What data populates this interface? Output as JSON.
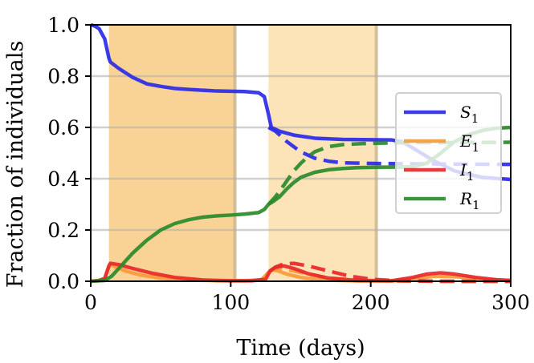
{
  "chart_data": {
    "type": "line",
    "xlabel": "Time (days)",
    "ylabel": "Fraction of individuals",
    "xlim": [
      0,
      300
    ],
    "ylim": [
      0,
      1
    ],
    "xticks": [
      "0",
      "100",
      "200",
      "300"
    ],
    "yticks": [
      "0.0",
      "0.2",
      "0.4",
      "0.6",
      "0.8",
      "1.0"
    ],
    "grid": "horizontal",
    "legend_position": "right",
    "legend": [
      {
        "label": "S",
        "sub": "1",
        "color": "#2a2ae8"
      },
      {
        "label": "E",
        "sub": "1",
        "color": "#f79a3a"
      },
      {
        "label": "I",
        "sub": "1",
        "color": "#e8282a"
      },
      {
        "label": "R",
        "sub": "1",
        "color": "#2a8a2a"
      }
    ],
    "shaded_regions": [
      {
        "x0": 13,
        "x1": 103,
        "color": "#f7c06a"
      },
      {
        "x0": 127,
        "x1": 204,
        "color": "#fbd89a"
      }
    ],
    "series": [
      {
        "name": "S1",
        "style": "solid",
        "color": "#2a2ae8",
        "x": [
          0,
          3,
          6,
          10,
          13,
          14,
          20,
          30,
          40,
          50,
          60,
          70,
          80,
          90,
          100,
          110,
          120,
          124,
          127,
          129,
          135,
          145,
          160,
          180,
          200,
          215,
          222,
          230,
          245,
          260,
          280,
          300
        ],
        "y": [
          1.0,
          0.995,
          0.985,
          0.945,
          0.87,
          0.855,
          0.83,
          0.795,
          0.77,
          0.76,
          0.752,
          0.748,
          0.745,
          0.742,
          0.741,
          0.74,
          0.735,
          0.72,
          0.65,
          0.6,
          0.585,
          0.57,
          0.558,
          0.553,
          0.552,
          0.551,
          0.545,
          0.52,
          0.47,
          0.43,
          0.405,
          0.397
        ]
      },
      {
        "name": "S1 (dashed)",
        "style": "dashed",
        "color": "#2a2ae8",
        "x": [
          127,
          132,
          140,
          150,
          160,
          170,
          180,
          195,
          210,
          230,
          260,
          300
        ],
        "y": [
          0.6,
          0.585,
          0.545,
          0.505,
          0.48,
          0.468,
          0.462,
          0.46,
          0.459,
          0.458,
          0.457,
          0.456
        ]
      },
      {
        "name": "E1",
        "style": "solid",
        "color": "#f79a3a",
        "x": [
          0,
          6,
          10,
          13,
          14,
          18,
          25,
          35,
          50,
          70,
          90,
          110,
          122,
          127,
          130,
          134,
          140,
          150,
          165,
          190,
          215,
          230,
          245,
          260,
          280,
          300
        ],
        "y": [
          0.0,
          0.003,
          0.012,
          0.06,
          0.065,
          0.055,
          0.04,
          0.025,
          0.012,
          0.005,
          0.002,
          0.002,
          0.006,
          0.035,
          0.045,
          0.04,
          0.028,
          0.015,
          0.005,
          0.001,
          0.001,
          0.008,
          0.02,
          0.018,
          0.008,
          0.003
        ]
      },
      {
        "name": "E1 (dashed)",
        "style": "dashed",
        "color": "#f79a3a",
        "x": [
          127,
          130,
          136,
          145,
          155,
          170,
          190,
          220,
          260,
          300
        ],
        "y": [
          0.035,
          0.045,
          0.05,
          0.04,
          0.028,
          0.013,
          0.004,
          0.001,
          0.0,
          0.0
        ]
      },
      {
        "name": "I1",
        "style": "solid",
        "color": "#e8282a",
        "x": [
          0,
          5,
          10,
          13,
          14,
          20,
          30,
          45,
          60,
          80,
          100,
          115,
          125,
          128,
          132,
          138,
          145,
          155,
          170,
          190,
          215,
          230,
          240,
          250,
          260,
          275,
          290,
          300
        ],
        "y": [
          0.0,
          0.002,
          0.01,
          0.06,
          0.07,
          0.065,
          0.05,
          0.03,
          0.015,
          0.005,
          0.002,
          0.002,
          0.008,
          0.04,
          0.055,
          0.06,
          0.05,
          0.03,
          0.012,
          0.003,
          0.002,
          0.015,
          0.028,
          0.033,
          0.028,
          0.015,
          0.006,
          0.003
        ]
      },
      {
        "name": "I1 (dashed)",
        "style": "dashed",
        "color": "#e8282a",
        "x": [
          128,
          132,
          138,
          145,
          155,
          170,
          185,
          200,
          220,
          250,
          300
        ],
        "y": [
          0.04,
          0.055,
          0.068,
          0.07,
          0.06,
          0.04,
          0.02,
          0.008,
          0.002,
          0.0,
          0.0
        ]
      },
      {
        "name": "R1",
        "style": "solid",
        "color": "#2a8a2a",
        "x": [
          0,
          10,
          15,
          20,
          25,
          30,
          40,
          50,
          60,
          70,
          80,
          90,
          100,
          110,
          120,
          124,
          127,
          130,
          135,
          140,
          145,
          150,
          160,
          170,
          180,
          190,
          200,
          210,
          220,
          230,
          240,
          250,
          260,
          270,
          280,
          290,
          300
        ],
        "y": [
          0.0,
          0.003,
          0.02,
          0.05,
          0.08,
          0.11,
          0.16,
          0.2,
          0.225,
          0.24,
          0.25,
          0.255,
          0.258,
          0.262,
          0.268,
          0.28,
          0.3,
          0.31,
          0.33,
          0.36,
          0.385,
          0.405,
          0.425,
          0.435,
          0.44,
          0.443,
          0.444,
          0.445,
          0.445,
          0.447,
          0.46,
          0.5,
          0.545,
          0.572,
          0.588,
          0.597,
          0.6
        ]
      },
      {
        "name": "R1 (dashed)",
        "style": "dashed",
        "color": "#2a8a2a",
        "x": [
          127,
          132,
          138,
          145,
          150,
          155,
          160,
          170,
          180,
          195,
          210,
          230,
          260,
          300
        ],
        "y": [
          0.3,
          0.33,
          0.375,
          0.43,
          0.46,
          0.485,
          0.505,
          0.525,
          0.533,
          0.537,
          0.539,
          0.54,
          0.541,
          0.542
        ]
      }
    ]
  }
}
